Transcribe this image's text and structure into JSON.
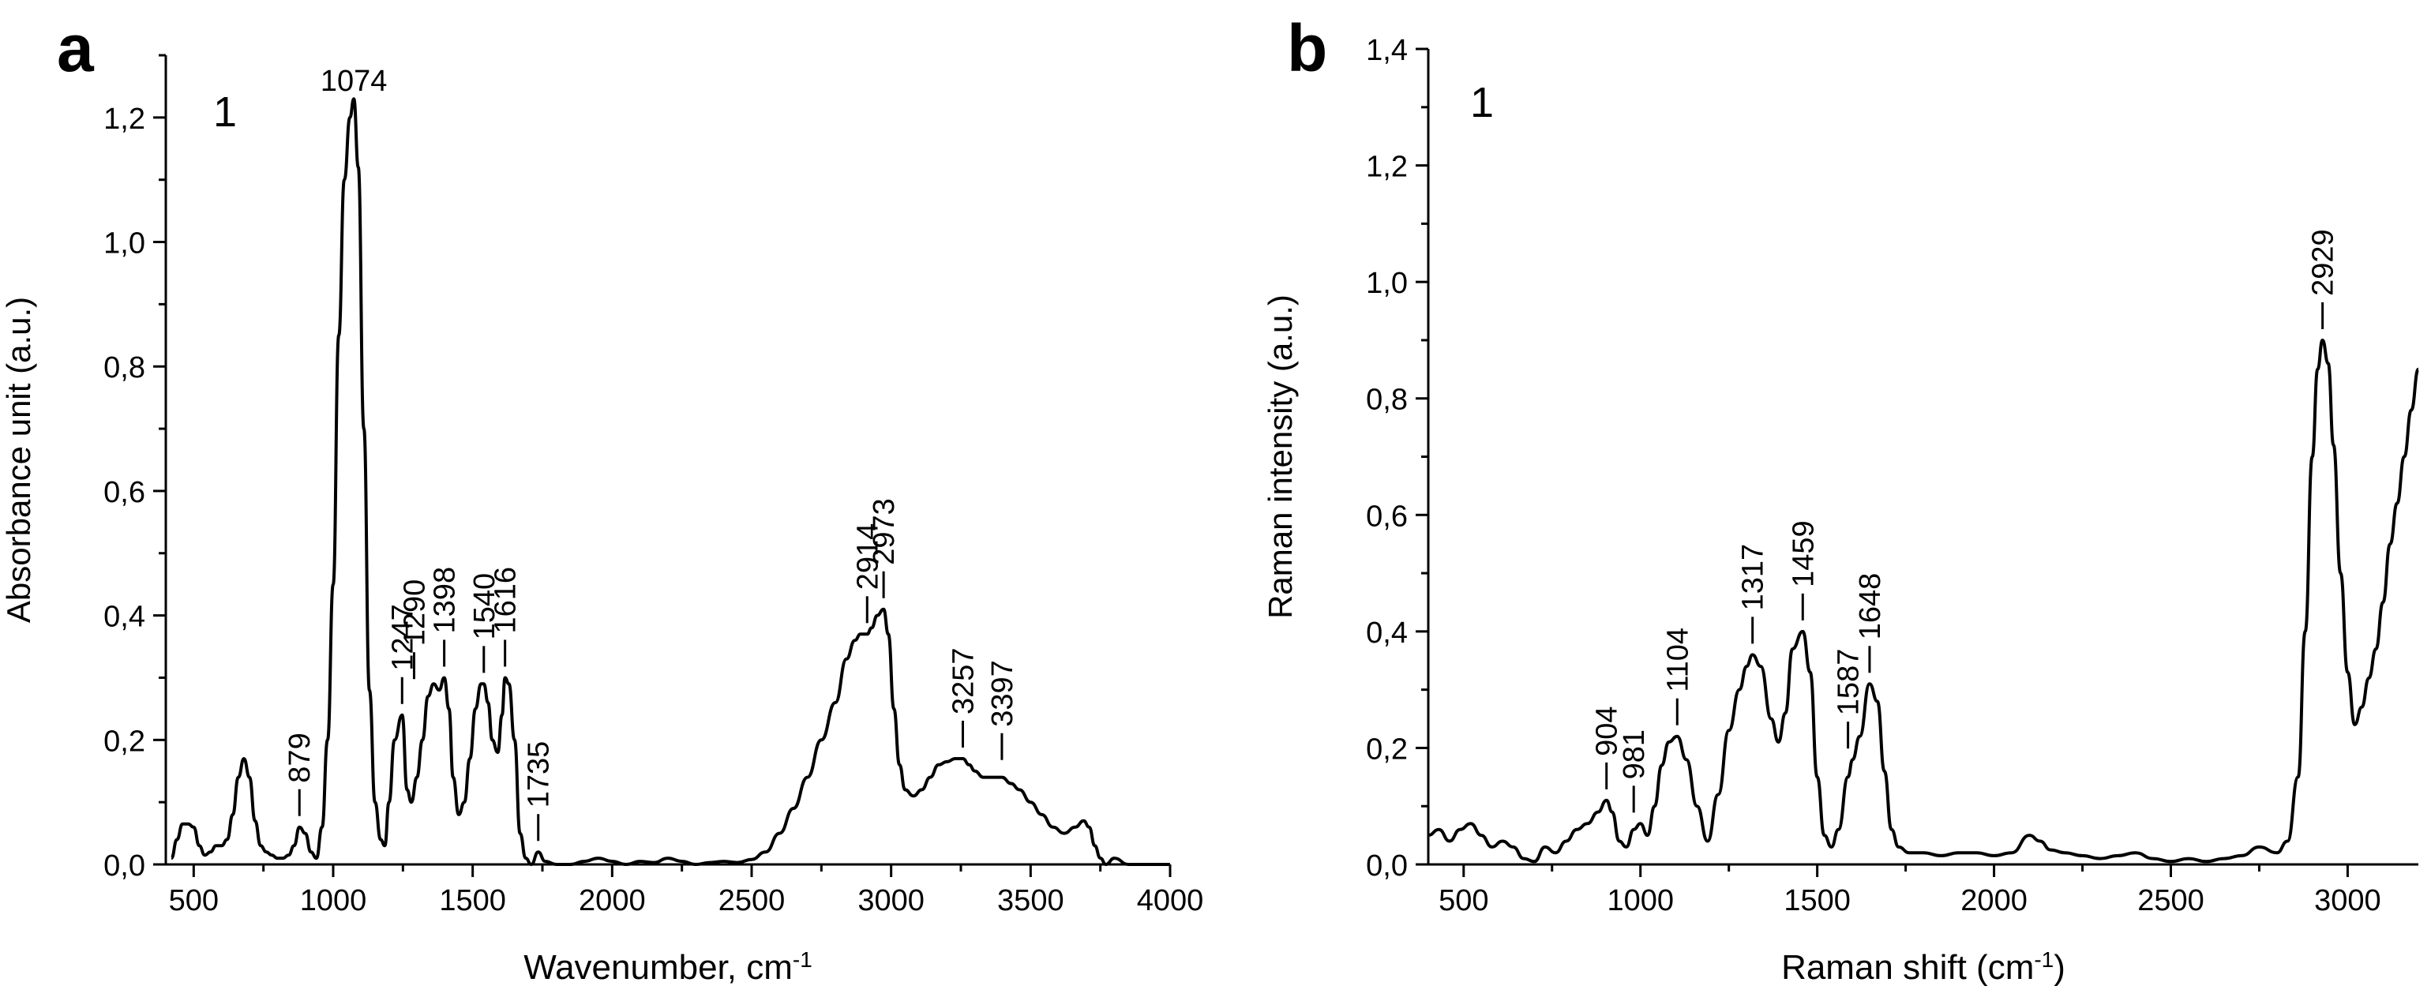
{
  "chart_data": [
    {
      "type": "line",
      "panel": "a",
      "series_label": "1",
      "xlabel": "Wavenumber, cm",
      "xlabel_sup": "-1",
      "ylabel": "Absorbance unit (a.u.)",
      "xlim": [
        400,
        4000
      ],
      "ylim": [
        0,
        1.3
      ],
      "xticks": [
        500,
        1000,
        1500,
        2000,
        2500,
        3000,
        3500,
        4000
      ],
      "yticks": [
        0.0,
        0.2,
        0.4,
        0.6,
        0.8,
        1.0,
        1.2
      ],
      "ytick_labels": [
        "0,0",
        "0,2",
        "0,4",
        "0,6",
        "0,8",
        "1,0",
        "1,2"
      ],
      "peaks": [
        {
          "x": 879,
          "y": 0.06,
          "label": "879",
          "rotated": true
        },
        {
          "x": 1074,
          "y": 1.23,
          "label": "1074",
          "rotated": false
        },
        {
          "x": 1247,
          "y": 0.24,
          "label": "1247",
          "rotated": true
        },
        {
          "x": 1290,
          "y": 0.28,
          "label": "1290",
          "rotated": true
        },
        {
          "x": 1398,
          "y": 0.3,
          "label": "1398",
          "rotated": true
        },
        {
          "x": 1540,
          "y": 0.29,
          "label": "1540",
          "rotated": true
        },
        {
          "x": 1616,
          "y": 0.3,
          "label": "1616",
          "rotated": true
        },
        {
          "x": 1735,
          "y": 0.02,
          "label": "1735",
          "rotated": true
        },
        {
          "x": 2914,
          "y": 0.37,
          "label": "2914",
          "rotated": true
        },
        {
          "x": 2973,
          "y": 0.41,
          "label": "2973",
          "rotated": true
        },
        {
          "x": 3257,
          "y": 0.17,
          "label": "3257",
          "rotated": true
        },
        {
          "x": 3397,
          "y": 0.15,
          "label": "3397",
          "rotated": true
        }
      ],
      "curve": {
        "x": [
          420,
          440,
          460,
          480,
          500,
          520,
          540,
          560,
          580,
          600,
          620,
          640,
          660,
          680,
          700,
          720,
          740,
          760,
          780,
          800,
          820,
          840,
          860,
          879,
          900,
          920,
          940,
          960,
          980,
          1000,
          1020,
          1040,
          1060,
          1074,
          1090,
          1110,
          1130,
          1150,
          1170,
          1185,
          1200,
          1220,
          1247,
          1265,
          1280,
          1300,
          1320,
          1340,
          1360,
          1380,
          1398,
          1415,
          1430,
          1450,
          1470,
          1490,
          1510,
          1530,
          1540,
          1555,
          1570,
          1590,
          1605,
          1616,
          1630,
          1650,
          1670,
          1690,
          1710,
          1735,
          1760,
          1800,
          1850,
          1900,
          1950,
          2000,
          2050,
          2100,
          2150,
          2200,
          2250,
          2300,
          2350,
          2400,
          2450,
          2500,
          2550,
          2600,
          2650,
          2700,
          2750,
          2800,
          2840,
          2870,
          2890,
          2900,
          2914,
          2930,
          2950,
          2973,
          2990,
          3010,
          3030,
          3050,
          3080,
          3110,
          3140,
          3170,
          3200,
          3230,
          3257,
          3280,
          3300,
          3330,
          3360,
          3397,
          3430,
          3460,
          3500,
          3540,
          3580,
          3620,
          3660,
          3690,
          3710,
          3730,
          3750,
          3770,
          3800,
          3850,
          3900,
          3950,
          4000
        ],
        "y": [
          0.01,
          0.04,
          0.065,
          0.065,
          0.06,
          0.03,
          0.015,
          0.02,
          0.03,
          0.03,
          0.04,
          0.08,
          0.14,
          0.17,
          0.14,
          0.07,
          0.03,
          0.02,
          0.015,
          0.01,
          0.01,
          0.015,
          0.03,
          0.06,
          0.05,
          0.02,
          0.01,
          0.06,
          0.2,
          0.45,
          0.85,
          1.1,
          1.2,
          1.23,
          1.12,
          0.7,
          0.28,
          0.1,
          0.04,
          0.03,
          0.1,
          0.2,
          0.24,
          0.12,
          0.1,
          0.14,
          0.2,
          0.27,
          0.29,
          0.28,
          0.3,
          0.25,
          0.14,
          0.08,
          0.1,
          0.17,
          0.25,
          0.29,
          0.29,
          0.26,
          0.2,
          0.18,
          0.24,
          0.3,
          0.29,
          0.2,
          0.05,
          0.01,
          0.0,
          0.02,
          0.005,
          0.0,
          0.0,
          0.005,
          0.01,
          0.005,
          0.0,
          0.005,
          0.003,
          0.01,
          0.005,
          0.0,
          0.003,
          0.005,
          0.003,
          0.008,
          0.02,
          0.05,
          0.09,
          0.14,
          0.2,
          0.26,
          0.33,
          0.36,
          0.37,
          0.37,
          0.37,
          0.38,
          0.4,
          0.41,
          0.37,
          0.25,
          0.16,
          0.12,
          0.11,
          0.12,
          0.14,
          0.16,
          0.165,
          0.17,
          0.17,
          0.16,
          0.15,
          0.14,
          0.14,
          0.14,
          0.13,
          0.12,
          0.1,
          0.08,
          0.06,
          0.05,
          0.06,
          0.07,
          0.06,
          0.03,
          0.01,
          0.0,
          0.01,
          0.0,
          0.0,
          0.0,
          0.0
        ]
      }
    },
    {
      "type": "line",
      "panel": "b",
      "series_label": "1",
      "xlabel": "Raman shift (cm",
      "xlabel_sup": "-1",
      "xlabel_suffix": ")",
      "ylabel": "Raman intensity (a.u.)",
      "xlim": [
        400,
        3200
      ],
      "ylim": [
        0,
        1.4
      ],
      "xticks": [
        500,
        1000,
        1500,
        2000,
        2500,
        3000
      ],
      "yticks": [
        0.0,
        0.2,
        0.4,
        0.6,
        0.8,
        1.0,
        1.2,
        1.4
      ],
      "ytick_labels": [
        "0,0",
        "0,2",
        "0,4",
        "0,6",
        "0,8",
        "1,0",
        "1,2",
        "1,4"
      ],
      "peaks": [
        {
          "x": 904,
          "y": 0.11,
          "label": "904",
          "rotated": true
        },
        {
          "x": 981,
          "y": 0.07,
          "label": "981",
          "rotated": true
        },
        {
          "x": 1104,
          "y": 0.22,
          "label": "1104",
          "rotated": true
        },
        {
          "x": 1317,
          "y": 0.36,
          "label": "1317",
          "rotated": true
        },
        {
          "x": 1459,
          "y": 0.4,
          "label": "1459",
          "rotated": true
        },
        {
          "x": 1587,
          "y": 0.18,
          "label": "1587",
          "rotated": true
        },
        {
          "x": 1648,
          "y": 0.31,
          "label": "1648",
          "rotated": true
        },
        {
          "x": 2929,
          "y": 0.9,
          "label": "2929",
          "rotated": true
        }
      ],
      "curve": {
        "x": [
          400,
          430,
          460,
          490,
          520,
          550,
          580,
          610,
          640,
          670,
          700,
          730,
          760,
          790,
          820,
          850,
          880,
          904,
          920,
          940,
          960,
          981,
          1000,
          1020,
          1040,
          1060,
          1080,
          1104,
          1130,
          1160,
          1190,
          1220,
          1250,
          1280,
          1300,
          1317,
          1340,
          1370,
          1390,
          1410,
          1430,
          1459,
          1480,
          1500,
          1520,
          1540,
          1560,
          1587,
          1600,
          1620,
          1648,
          1670,
          1690,
          1710,
          1730,
          1760,
          1800,
          1850,
          1900,
          1950,
          2000,
          2050,
          2100,
          2130,
          2160,
          2200,
          2250,
          2300,
          2350,
          2400,
          2450,
          2500,
          2550,
          2600,
          2650,
          2700,
          2750,
          2800,
          2830,
          2860,
          2880,
          2900,
          2915,
          2929,
          2945,
          2960,
          2980,
          3000,
          3020,
          3040,
          3060,
          3080,
          3100,
          3120,
          3140,
          3160,
          3180,
          3200
        ],
        "y": [
          0.05,
          0.06,
          0.04,
          0.06,
          0.07,
          0.05,
          0.03,
          0.04,
          0.03,
          0.01,
          0.005,
          0.03,
          0.02,
          0.04,
          0.06,
          0.07,
          0.09,
          0.11,
          0.09,
          0.04,
          0.03,
          0.06,
          0.07,
          0.05,
          0.1,
          0.17,
          0.21,
          0.22,
          0.18,
          0.1,
          0.04,
          0.12,
          0.23,
          0.3,
          0.34,
          0.36,
          0.34,
          0.25,
          0.21,
          0.26,
          0.37,
          0.4,
          0.33,
          0.15,
          0.05,
          0.03,
          0.06,
          0.15,
          0.18,
          0.22,
          0.31,
          0.28,
          0.16,
          0.06,
          0.03,
          0.02,
          0.02,
          0.015,
          0.02,
          0.02,
          0.015,
          0.02,
          0.05,
          0.04,
          0.025,
          0.02,
          0.015,
          0.01,
          0.015,
          0.02,
          0.01,
          0.005,
          0.01,
          0.005,
          0.01,
          0.015,
          0.03,
          0.02,
          0.04,
          0.15,
          0.4,
          0.7,
          0.85,
          0.9,
          0.86,
          0.72,
          0.5,
          0.33,
          0.24,
          0.27,
          0.32,
          0.37,
          0.45,
          0.55,
          0.62,
          0.7,
          0.78,
          0.85
        ]
      }
    }
  ]
}
